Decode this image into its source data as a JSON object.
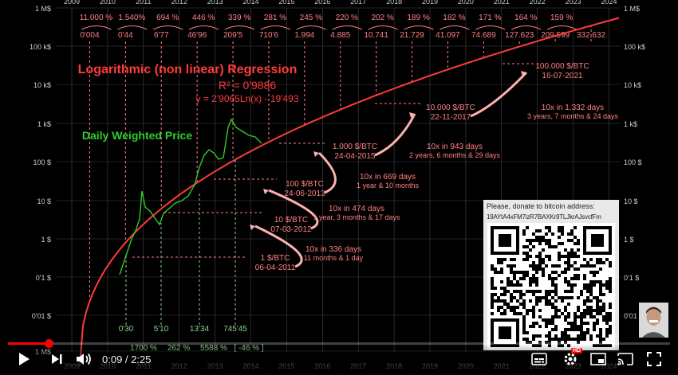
{
  "chart": {
    "title": "Logarithmic (non linear) Regression",
    "r2": "R² = 0'9886",
    "equation": "y = 2'9065Ln(x) - 19'493",
    "series_label": "Daily Weighted Price",
    "colors": {
      "regression": "#ff3b3b",
      "price": "#2ecc2e",
      "milestone": "#ff8080",
      "grid": "#444",
      "axis_text": "#cccccc"
    },
    "years": [
      "2009",
      "2010",
      "2011",
      "2012",
      "2013",
      "2014",
      "2015",
      "2016",
      "2017",
      "2018",
      "2019",
      "2020",
      "2021",
      "2022",
      "2023",
      "2024"
    ],
    "y_ticks": [
      "1 M$",
      "100 k$",
      "10 k$",
      "1 k$",
      "100 $",
      "10 $",
      "1 $",
      "0'1 $",
      "0'01 $",
      "1 M$"
    ],
    "y_ticks_right": [
      "1 M$",
      "100 k$",
      "10 k$",
      "1 k$",
      "100 $",
      "10 $",
      "1 $",
      "0'1 $",
      "0'01 $"
    ],
    "yearly_growth": [
      "11.000 %",
      "1.540%",
      "694 %",
      "446 %",
      "339 %",
      "281 %",
      "245 %",
      "220 %",
      "202 %",
      "189 %",
      "182 %",
      "171 %",
      "164 %",
      "159 %"
    ],
    "yearly_prices": [
      "0'004",
      "0'44",
      "6'77",
      "46'96",
      "209'5",
      "710'6",
      "1.994",
      "4.885",
      "10.741",
      "21.729",
      "41.097",
      "74.689",
      "127.623",
      "209.599",
      "332.632"
    ],
    "bottom_prices": [
      "0'30",
      "5'10",
      "13'34",
      "745'45"
    ],
    "bottom_growth": [
      "1700 %",
      "262 %",
      "5588 %",
      "[ -46 % ]"
    ],
    "milestones": [
      {
        "price": "1 $/BTC",
        "date": "06-04-2011"
      },
      {
        "price": "10 $/BTC",
        "date": "07-03-2012"
      },
      {
        "price": "100 $/BTC",
        "date": "24-06-2013"
      },
      {
        "price": "1.000 $/BTC",
        "date": "24-04-2015"
      },
      {
        "price": "10.000 $/BTC",
        "date": "22-11-2017"
      },
      {
        "price": "100.000 $/BTC",
        "date": "16-07-2021"
      }
    ],
    "intervals": [
      {
        "main": "10x in 336 days",
        "sub": "11 months & 1 day"
      },
      {
        "main": "10x in 474 days",
        "sub": "1 year, 3 months & 17 days"
      },
      {
        "main": "10x in 669 days",
        "sub": "1 year & 10 months"
      },
      {
        "main": "10x in 943 days",
        "sub": "2 years, 6 months & 29 days"
      },
      {
        "main": "10x  in 1.332 days",
        "sub": "3 years, 7 months & 24 days"
      }
    ]
  },
  "donation": {
    "label": "Please, donate to bitcoin address:",
    "address": "19AYtA4xFM7izR7BAXKr9TLJkrAJsvcfFm"
  },
  "player": {
    "current_time": "0:09",
    "duration": "2:25",
    "time_display": "0:09 / 2:25",
    "progress": 0.062,
    "hd_badge": "HD",
    "icons": {
      "play": "play-icon",
      "next": "next-icon",
      "volume": "volume-icon",
      "subtitles": "subtitles-icon",
      "settings": "settings-gear-icon",
      "miniplayer": "miniplayer-icon",
      "cast": "cast-icon",
      "fullscreen": "fullscreen-icon"
    }
  }
}
